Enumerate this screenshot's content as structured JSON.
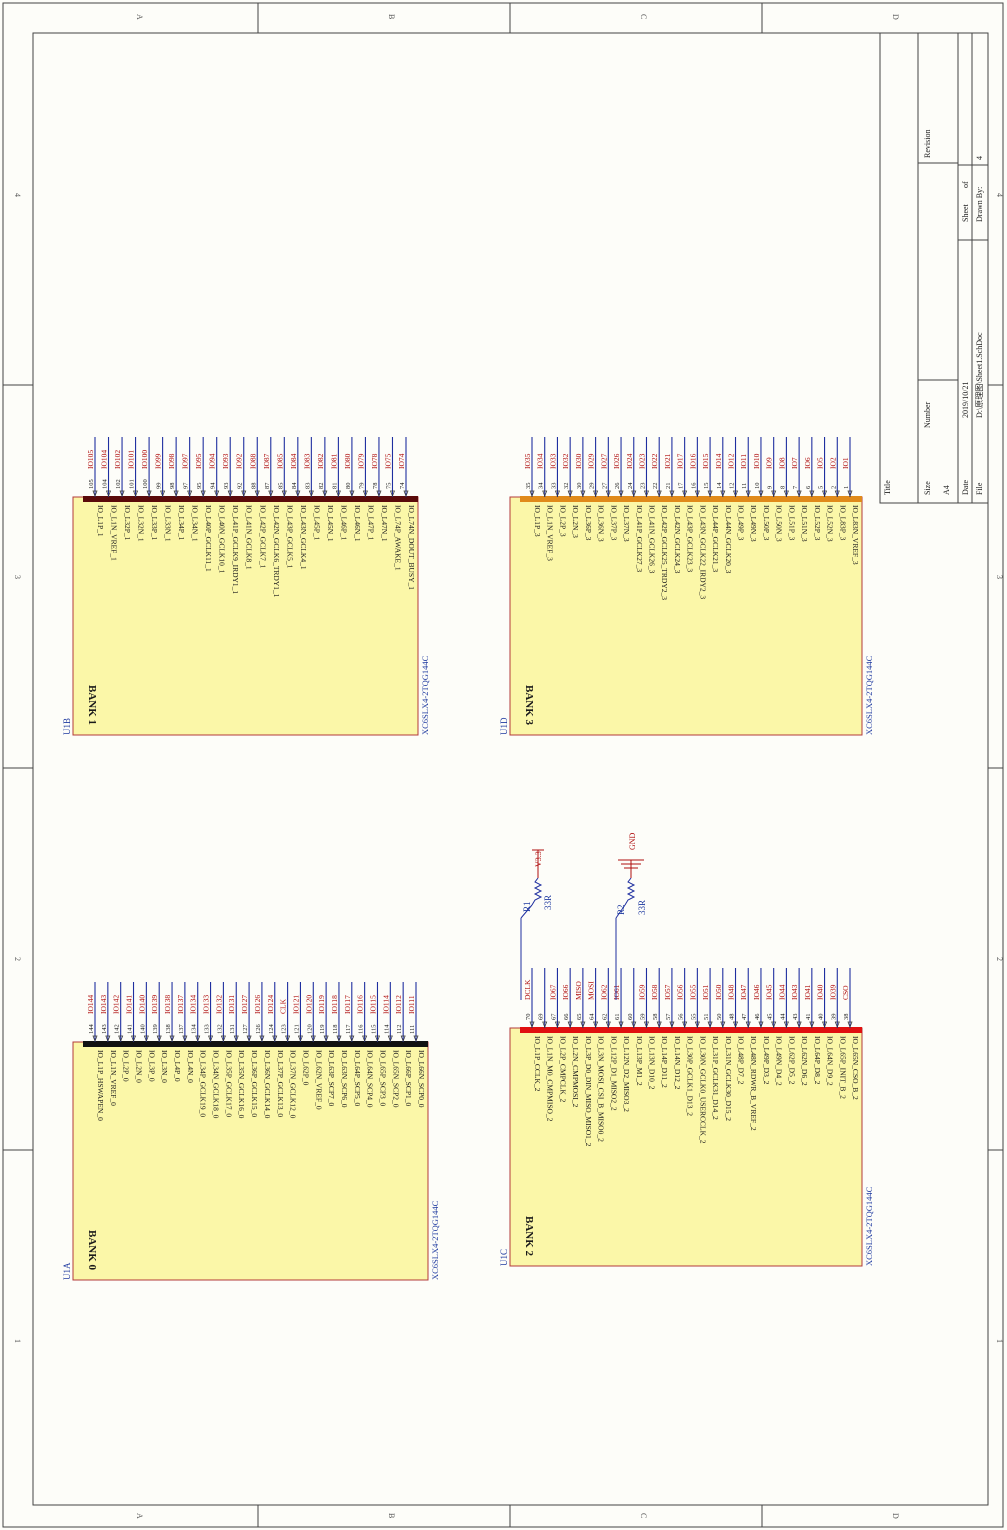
{
  "zones": {
    "cols": [
      "A",
      "B",
      "C",
      "D"
    ],
    "rows": [
      "4",
      "3",
      "2",
      "1"
    ]
  },
  "title_block": {
    "title": "Title",
    "size_label": "Size",
    "size": "A4",
    "number_label": "Number",
    "revision_label": "Revision",
    "date_label": "Date",
    "date": "2019/10/21",
    "file_label": "File",
    "file": "D:\\原理图\\Sheet1.SchDoc",
    "sheet_label": "Sheet",
    "of_label": "of",
    "drawn_label": "Drawn By:",
    "sheet_num": "4"
  },
  "banks": [
    {
      "designator": "U1B",
      "name": "BANK 1",
      "part": "XC6SLX4-2TQG144C",
      "pins": [
        {
          "num": "105",
          "name": "IO_L1P_1",
          "net": "IO105"
        },
        {
          "num": "104",
          "name": "IO_L1N_VREF_1",
          "net": "IO104"
        },
        {
          "num": "102",
          "name": "IO_L32P_1",
          "net": "IO102"
        },
        {
          "num": "101",
          "name": "IO_L32N_1",
          "net": "IO101"
        },
        {
          "num": "100",
          "name": "IO_L33P_1",
          "net": "IO100"
        },
        {
          "num": "99",
          "name": "IO_L33N_1",
          "net": "IO99"
        },
        {
          "num": "98",
          "name": "IO_L34P_1",
          "net": "IO98"
        },
        {
          "num": "97",
          "name": "IO_L34N_1",
          "net": "IO97"
        },
        {
          "num": "95",
          "name": "IO_L40P_GCLK11_1",
          "net": "IO95"
        },
        {
          "num": "94",
          "name": "IO_L40N_GCLK10_1",
          "net": "IO94"
        },
        {
          "num": "93",
          "name": "IO_L41P_GCLK9_IRDY1_1",
          "net": "IO93"
        },
        {
          "num": "92",
          "name": "IO_L41N_GCLK8_1",
          "net": "IO92"
        },
        {
          "num": "88",
          "name": "IO_L42P_GCLK7_1",
          "net": "IO88"
        },
        {
          "num": "87",
          "name": "IO_L42N_GCLK6_TRDY1_1",
          "net": "IO87"
        },
        {
          "num": "85",
          "name": "IO_L43P_GCLK5_1",
          "net": "IO85"
        },
        {
          "num": "84",
          "name": "IO_L43N_GCLK4_1",
          "net": "IO84"
        },
        {
          "num": "83",
          "name": "IO_L45P_1",
          "net": "IO83"
        },
        {
          "num": "82",
          "name": "IO_L45N_1",
          "net": "IO82"
        },
        {
          "num": "81",
          "name": "IO_L46P_1",
          "net": "IO81"
        },
        {
          "num": "80",
          "name": "IO_L46N_1",
          "net": "IO80"
        },
        {
          "num": "79",
          "name": "IO_L47P_1",
          "net": "IO79"
        },
        {
          "num": "78",
          "name": "IO_L47N_1",
          "net": "IO78"
        },
        {
          "num": "75",
          "name": "IO_L74P_AWAKE_1",
          "net": "IO75"
        },
        {
          "num": "74",
          "name": "IO_L74N_DOUT_BUSY_1",
          "net": "IO74"
        }
      ]
    },
    {
      "designator": "U1D",
      "name": "BANK 3",
      "part": "XC6SLX4-2TQG144C",
      "pins": [
        {
          "num": "35",
          "name": "IO_L1P_3",
          "net": "IO35"
        },
        {
          "num": "34",
          "name": "IO_L1N_VREF_3",
          "net": "IO34"
        },
        {
          "num": "33",
          "name": "IO_L2P_3",
          "net": "IO33"
        },
        {
          "num": "32",
          "name": "IO_L2N_3",
          "net": "IO32"
        },
        {
          "num": "30",
          "name": "IO_L36P_3",
          "net": "IO30"
        },
        {
          "num": "29",
          "name": "IO_L36N_3",
          "net": "IO29"
        },
        {
          "num": "27",
          "name": "IO_L37P_3",
          "net": "IO27"
        },
        {
          "num": "26",
          "name": "IO_L37N_3",
          "net": "IO26"
        },
        {
          "num": "24",
          "name": "IO_L41P_GCLK27_3",
          "net": "IO24"
        },
        {
          "num": "23",
          "name": "IO_L41N_GCLK26_3",
          "net": "IO23"
        },
        {
          "num": "22",
          "name": "IO_L42P_GCLK25_TRDY2_3",
          "net": "IO22"
        },
        {
          "num": "21",
          "name": "IO_L42N_GCLK24_3",
          "net": "IO21"
        },
        {
          "num": "17",
          "name": "IO_L43P_GCLK23_3",
          "net": "IO17"
        },
        {
          "num": "16",
          "name": "IO_L43N_GCLK22_IRDY2_3",
          "net": "IO16"
        },
        {
          "num": "15",
          "name": "IO_L44P_GCLK21_3",
          "net": "IO15"
        },
        {
          "num": "14",
          "name": "IO_L44N_GCLK20_3",
          "net": "IO14"
        },
        {
          "num": "12",
          "name": "IO_L49P_3",
          "net": "IO12"
        },
        {
          "num": "11",
          "name": "IO_L49N_3",
          "net": "IO11"
        },
        {
          "num": "10",
          "name": "IO_L50P_3",
          "net": "IO10"
        },
        {
          "num": "9",
          "name": "IO_L50N_3",
          "net": "IO9"
        },
        {
          "num": "8",
          "name": "IO_L51P_3",
          "net": "IO8"
        },
        {
          "num": "7",
          "name": "IO_L51N_3",
          "net": "IO7"
        },
        {
          "num": "6",
          "name": "IO_L52P_3",
          "net": "IO6"
        },
        {
          "num": "5",
          "name": "IO_L52N_3",
          "net": "IO5"
        },
        {
          "num": "2",
          "name": "IO_L83P_3",
          "net": "IO2"
        },
        {
          "num": "1",
          "name": "IO_L83N_VREF_3",
          "net": "IO1"
        }
      ]
    },
    {
      "designator": "U1A",
      "name": "BANK 0",
      "part": "XC6SLX4-2TQG144C",
      "pins": [
        {
          "num": "144",
          "name": "IO_L1P_HSWAPEN_0",
          "net": "IO144"
        },
        {
          "num": "143",
          "name": "IO_L1N_VREF_0",
          "net": "IO143"
        },
        {
          "num": "142",
          "name": "IO_L2P_0",
          "net": "IO142"
        },
        {
          "num": "141",
          "name": "IO_L2N_0",
          "net": "IO141"
        },
        {
          "num": "140",
          "name": "IO_L3P_0",
          "net": "IO140"
        },
        {
          "num": "139",
          "name": "IO_L3N_0",
          "net": "IO139"
        },
        {
          "num": "138",
          "name": "IO_L4P_0",
          "net": "IO138"
        },
        {
          "num": "137",
          "name": "IO_L4N_0",
          "net": "IO137"
        },
        {
          "num": "134",
          "name": "IO_L34P_GCLK19_0",
          "net": "IO134"
        },
        {
          "num": "133",
          "name": "IO_L34N_GCLK18_0",
          "net": "IO133"
        },
        {
          "num": "132",
          "name": "IO_L35P_GCLK17_0",
          "net": "IO132"
        },
        {
          "num": "131",
          "name": "IO_L35N_GCLK16_0",
          "net": "IO131"
        },
        {
          "num": "127",
          "name": "IO_L36P_GCLK15_0",
          "net": "IO127"
        },
        {
          "num": "126",
          "name": "IO_L36N_GCLK14_0",
          "net": "IO126"
        },
        {
          "num": "124",
          "name": "IO_L37P_GCLK13_0",
          "net": "IO124"
        },
        {
          "num": "123",
          "name": "IO_L37N_GCLK12_0",
          "net": "CLK"
        },
        {
          "num": "121",
          "name": "IO_L62P_0",
          "net": "IO121"
        },
        {
          "num": "120",
          "name": "IO_L62N_VREF_0",
          "net": "IO120"
        },
        {
          "num": "119",
          "name": "IO_L63P_SCP7_0",
          "net": "IO119"
        },
        {
          "num": "118",
          "name": "IO_L63N_SCP6_0",
          "net": "IO118"
        },
        {
          "num": "117",
          "name": "IO_L64P_SCP5_0",
          "net": "IO117"
        },
        {
          "num": "116",
          "name": "IO_L64N_SCP4_0",
          "net": "IO116"
        },
        {
          "num": "115",
          "name": "IO_L65P_SCP3_0",
          "net": "IO115"
        },
        {
          "num": "114",
          "name": "IO_L65N_SCP2_0",
          "net": "IO114"
        },
        {
          "num": "112",
          "name": "IO_L66P_SCP1_0",
          "net": "IO112"
        },
        {
          "num": "111",
          "name": "IO_L66N_SCP0_0",
          "net": "IO111"
        }
      ]
    },
    {
      "designator": "U1C",
      "name": "BANK 2",
      "part": "XC6SLX4-2TQG144C",
      "pins": [
        {
          "num": "70",
          "name": "IO_L1P_CCLK_2",
          "net": "DCLK"
        },
        {
          "num": "69",
          "name": "IO_L1N_M0_CMPMISO_2",
          "net": ""
        },
        {
          "num": "67",
          "name": "IO_L2P_CMPCLK_2",
          "net": "IO67"
        },
        {
          "num": "66",
          "name": "IO_L2N_CMPMOSI_2",
          "net": "IO66"
        },
        {
          "num": "65",
          "name": "IO_L3P_D0_DIN_MISO_MISO1_2",
          "net": "MISO"
        },
        {
          "num": "64",
          "name": "IO_L3N_MOSI_CSI_B_MISO0_2",
          "net": "MOSI"
        },
        {
          "num": "62",
          "name": "IO_L12P_D1_MISO2_2",
          "net": "IO62"
        },
        {
          "num": "61",
          "name": "IO_L12N_D2_MISO3_2",
          "net": "IO61"
        },
        {
          "num": "60",
          "name": "IO_L13P_M1_2",
          "net": ""
        },
        {
          "num": "59",
          "name": "IO_L13N_D10_2",
          "net": "IO59"
        },
        {
          "num": "58",
          "name": "IO_L14P_D11_2",
          "net": "IO58"
        },
        {
          "num": "57",
          "name": "IO_L14N_D12_2",
          "net": "IO57"
        },
        {
          "num": "56",
          "name": "IO_L30P_GCLK1_D13_2",
          "net": "IO56"
        },
        {
          "num": "55",
          "name": "IO_L30N_GCLK0_USERCCLK_2",
          "net": "IO55"
        },
        {
          "num": "51",
          "name": "IO_L31P_GCLK31_D14_2",
          "net": "IO51"
        },
        {
          "num": "50",
          "name": "IO_L31N_GCLK30_D15_2",
          "net": "IO50"
        },
        {
          "num": "48",
          "name": "IO_L48P_D7_2",
          "net": "IO48"
        },
        {
          "num": "47",
          "name": "IO_L48N_RDWR_B_VREF_2",
          "net": "IO47"
        },
        {
          "num": "46",
          "name": "IO_L49P_D3_2",
          "net": "IO46"
        },
        {
          "num": "45",
          "name": "IO_L49N_D4_2",
          "net": "IO45"
        },
        {
          "num": "44",
          "name": "IO_L62P_D5_2",
          "net": "IO44"
        },
        {
          "num": "43",
          "name": "IO_L62N_D6_2",
          "net": "IO43"
        },
        {
          "num": "41",
          "name": "IO_L64P_D8_2",
          "net": "IO41"
        },
        {
          "num": "40",
          "name": "IO_L64N_D9_2",
          "net": "IO40"
        },
        {
          "num": "39",
          "name": "IO_L65P_INIT_B_2",
          "net": "IO39"
        },
        {
          "num": "38",
          "name": "IO_L65N_CSO_B_2",
          "net": "CSO"
        }
      ]
    }
  ],
  "resistors": [
    {
      "ref": "R1",
      "value": "33R",
      "net": "V3.3"
    },
    {
      "ref": "R2",
      "value": "33R",
      "net": "GND"
    }
  ],
  "colors": {
    "body_fill": "#fbf7a8",
    "body_stroke": "#b33a3a",
    "wire": "#1f2fa0",
    "net": "#b01010",
    "bar_u1b": "#5a0a0a",
    "bar_u1d": "#e08a1a",
    "bar_u1a": "#111111",
    "bar_u1c": "#e01010"
  }
}
